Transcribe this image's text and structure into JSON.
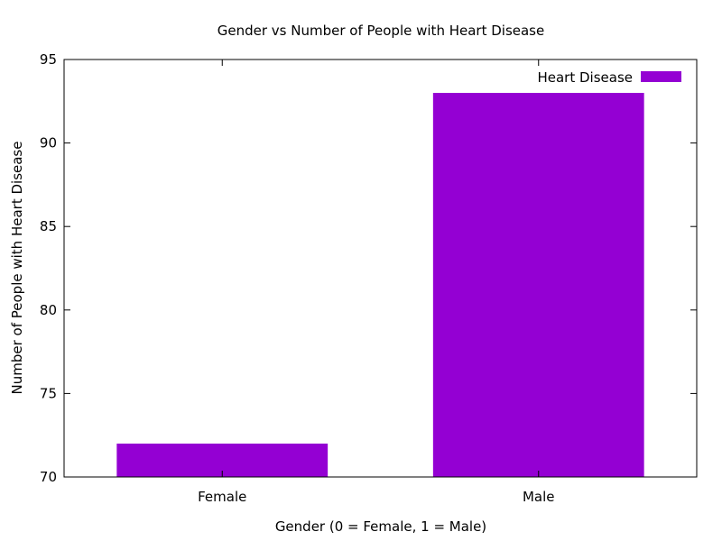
{
  "chart_data": {
    "type": "bar",
    "title": "Gender vs Number of People with Heart Disease",
    "xlabel": "Gender (0 = Female, 1 = Male)",
    "ylabel": "Number of People with Heart Disease",
    "categories": [
      "Female",
      "Male"
    ],
    "series": [
      {
        "name": "Heart Disease",
        "values": [
          72,
          93
        ],
        "color": "#9400d3"
      }
    ],
    "ylim": [
      70,
      95
    ],
    "yticks": [
      70,
      75,
      80,
      85,
      90,
      95
    ],
    "grid": false,
    "legend_position": "top-right"
  }
}
